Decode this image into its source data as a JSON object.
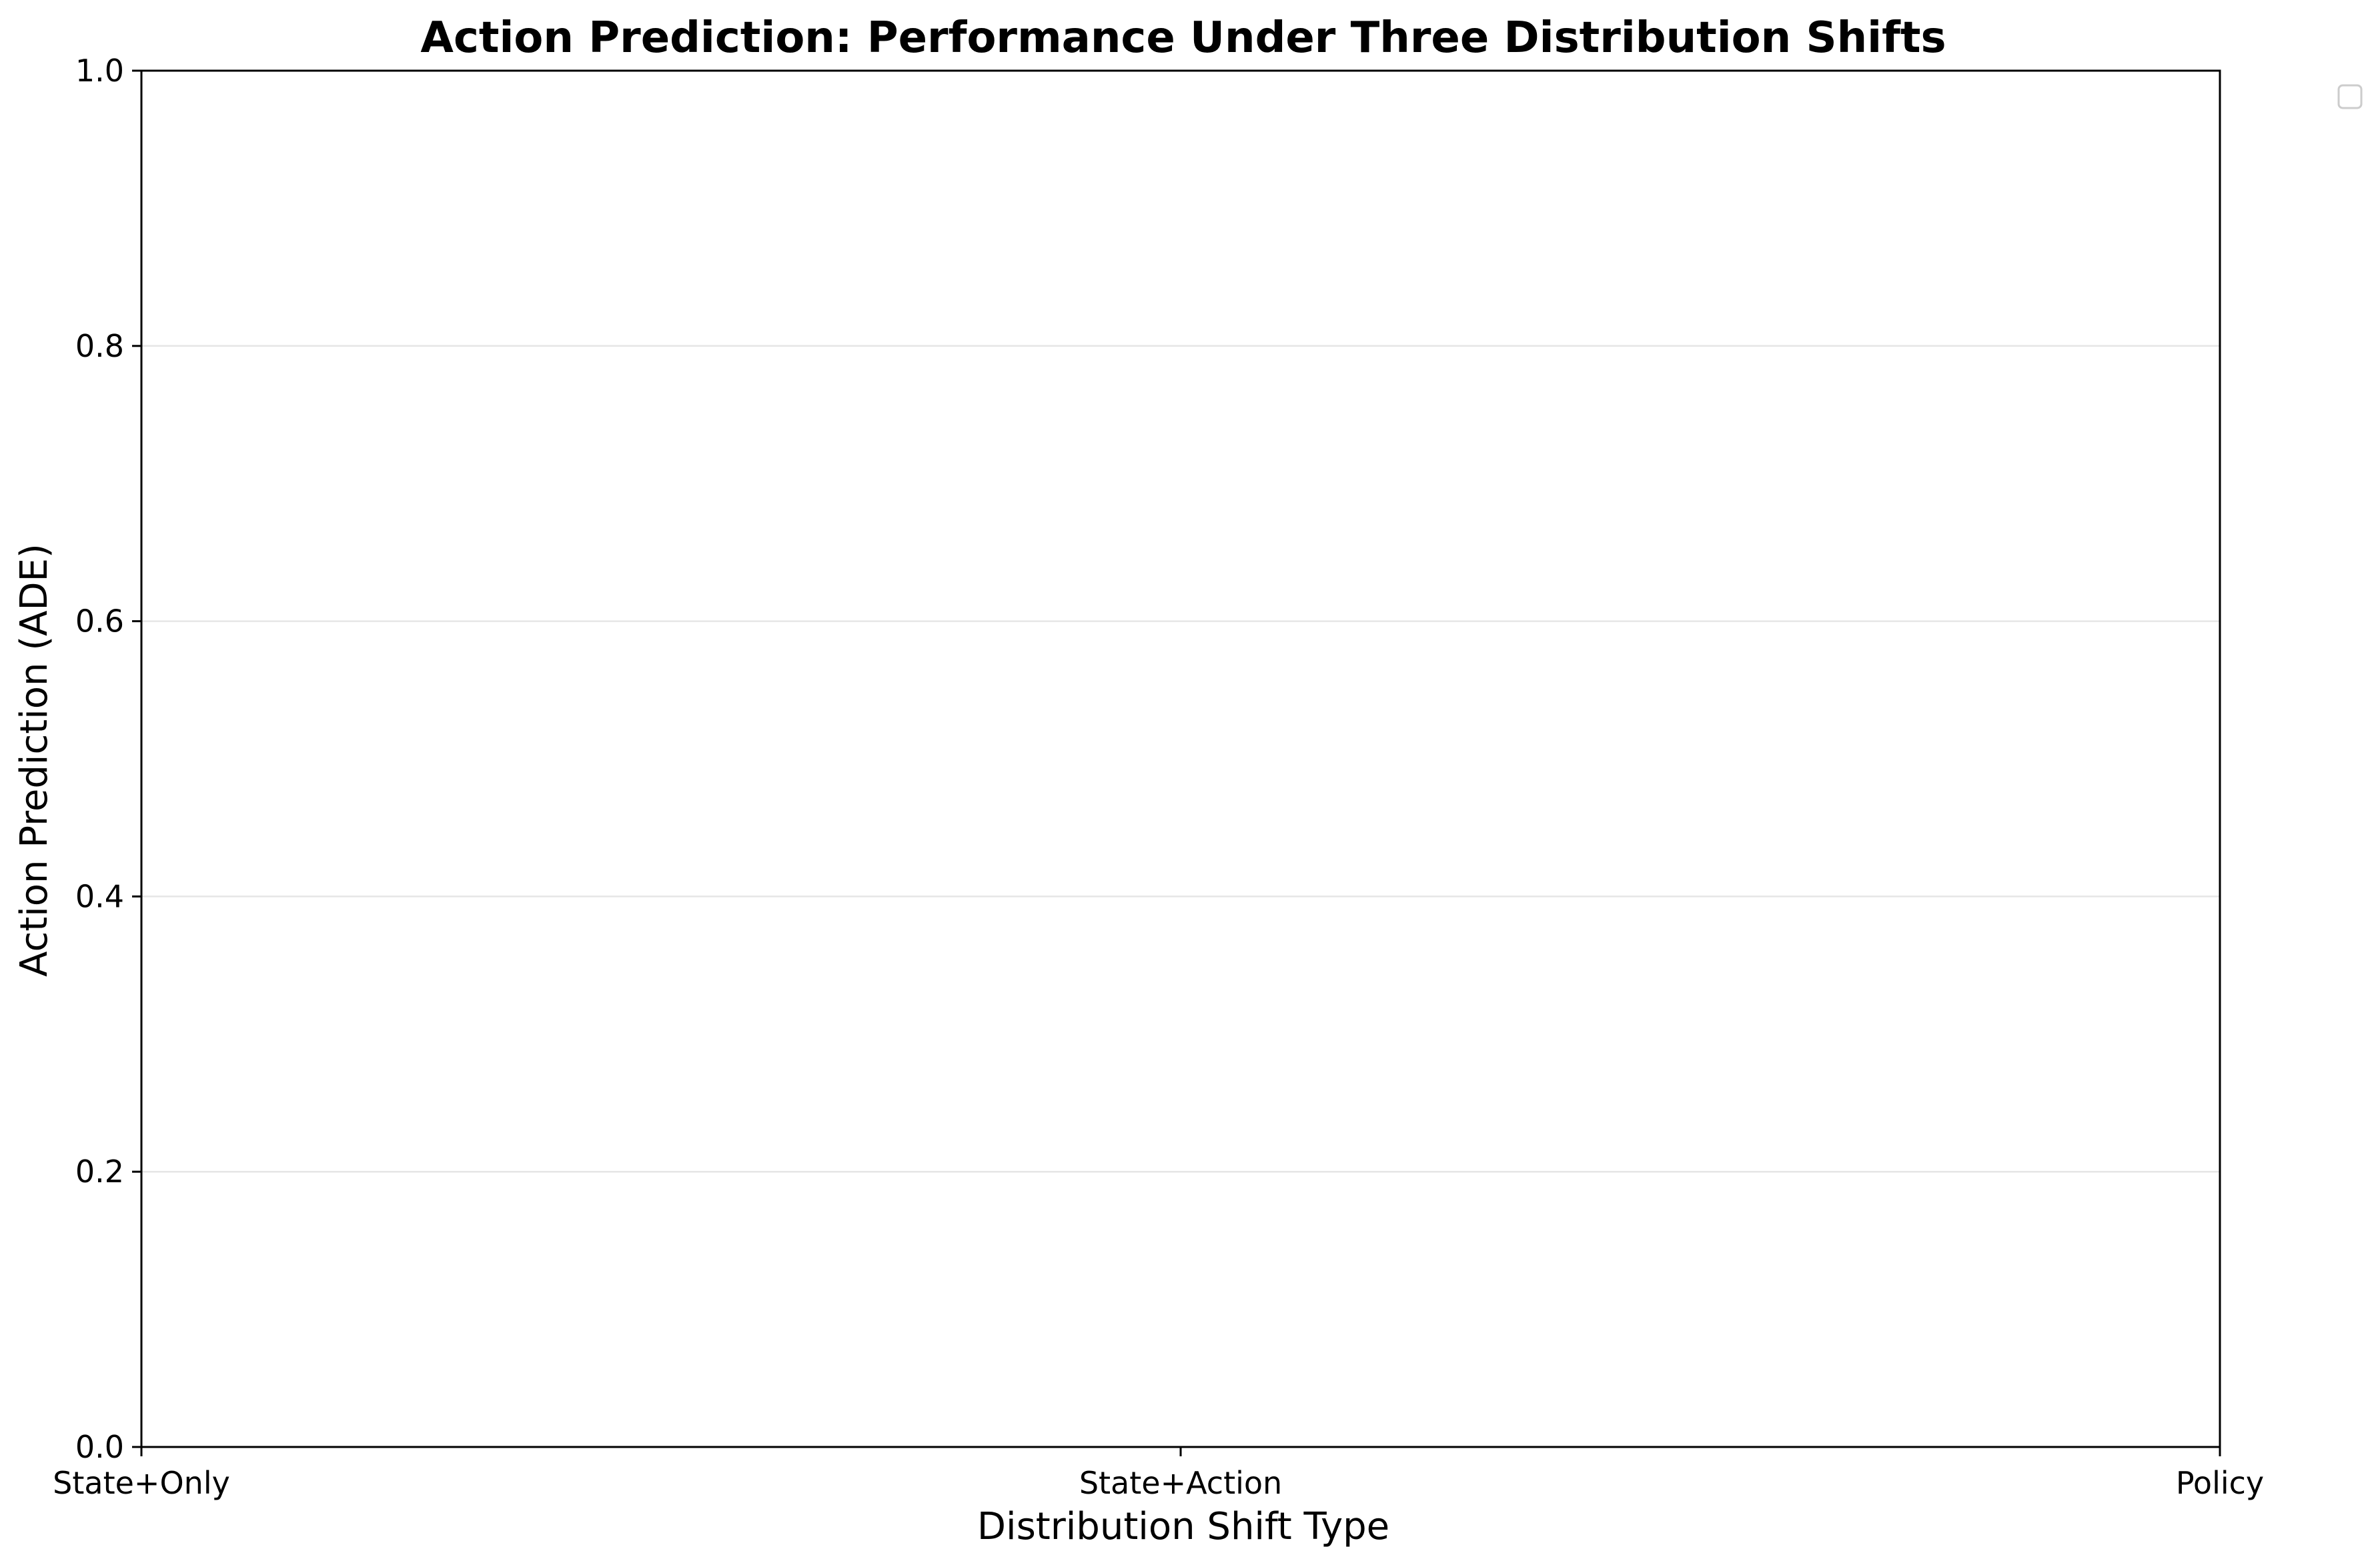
{
  "chart_data": {
    "type": "line",
    "title": "Action Prediction: Performance Under Three Distribution Shifts",
    "xlabel": "Distribution Shift Type",
    "ylabel": "Action Prediction (ADE)",
    "categories": [
      "State+Only",
      "State+Action",
      "Policy"
    ],
    "series": [],
    "ylim": [
      0,
      1
    ],
    "yticks": [
      0.0,
      0.2,
      0.4,
      0.6,
      0.8,
      1.0
    ],
    "ytick_labels": [
      "0.0",
      "0.2",
      "0.4",
      "0.6",
      "0.8",
      "1.0"
    ],
    "grid": "horizontal",
    "legend": {
      "placement": "outside-top-right",
      "entries": []
    },
    "colors": {
      "grid": "#e6e6e6",
      "axes": "#000000",
      "legend_border": "#cccccc"
    }
  }
}
